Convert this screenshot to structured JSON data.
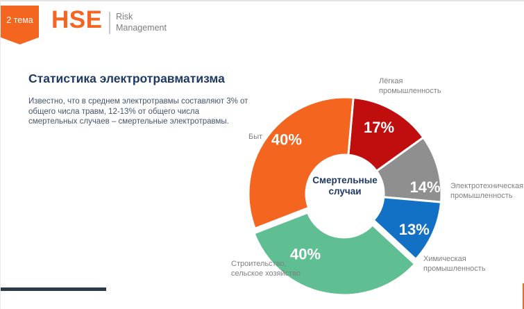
{
  "slide": {
    "badge_label": "2 тема",
    "logo": {
      "text": "HSE",
      "sub_line1": "Risk",
      "sub_line2": "Management"
    },
    "title": "Статистика электротравматизма",
    "body": "Известно, что в среднем электротравмы составляют 3% от общего числа травм, 12-13% от общего числа смертельных случаев – смертельные электротравмы.",
    "colors": {
      "accent_orange": "#F4651F",
      "title_navy": "#1F3864",
      "body_slate": "#44546A",
      "label_gray": "#7F7F7F",
      "footer_bar_dark": "#2C3A46"
    }
  },
  "chart_data": {
    "type": "pie",
    "subtype": "donut",
    "title": "Смертельные случаи",
    "center_label_line1": "Смертельные",
    "center_label_line2": "случаи",
    "start_angle": 5,
    "legend_position": "outside-callouts",
    "slices": [
      {
        "name": "Лёгкая промышленность",
        "value": 17,
        "pct_label": "17%",
        "color": "#C00D0D",
        "label_lines": [
          "Лёгкая",
          "промышленность"
        ],
        "explode": 0,
        "label_angle": 27,
        "label_radius": 108
      },
      {
        "name": "Электротехническая промышленность",
        "value": 14,
        "pct_label": "14%",
        "color": "#8F8F8F",
        "label_lines": [
          "Электротехническая",
          "промышленность"
        ],
        "explode": 0,
        "label_angle": 85,
        "label_radius": 116
      },
      {
        "name": "Химическая промышленность",
        "value": 13,
        "pct_label": "13%",
        "color": "#1271C5",
        "label_lines": [
          "Химическая",
          "промышленность"
        ],
        "explode": 0,
        "label_angle": 117,
        "label_radius": 112
      },
      {
        "name": "Строительство, сельское хозяйство",
        "value": 40,
        "pct_label": "40%",
        "color": "#5FBE92",
        "label_lines": [
          "Строительство,",
          "сельское хозяйство"
        ],
        "explode": 7,
        "label_angle": 215,
        "label_radius": 97
      },
      {
        "name": "Быт",
        "value": 40,
        "pct_label": "40%",
        "color": "#F4651F",
        "label_lines": [
          "Быт"
        ],
        "explode": 0,
        "label_angle": 313,
        "label_radius": 115
      }
    ]
  }
}
